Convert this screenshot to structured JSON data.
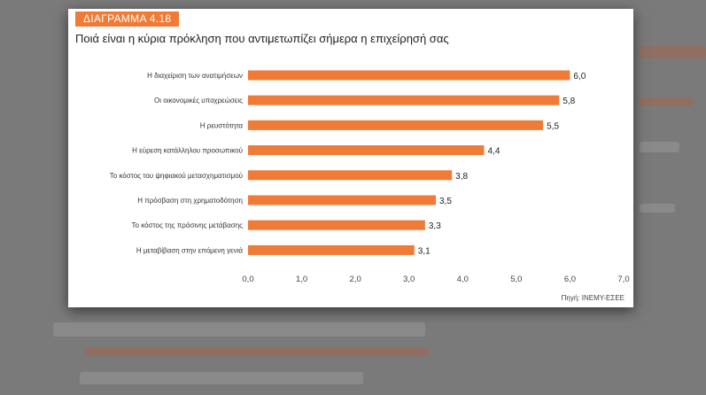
{
  "figure": {
    "tag": "ΔΙΑΓΡΑΜΜΑ 4.18",
    "title": "Ποιά είναι η κύρια πρόκληση που αντιμετωπίζει σήμερα η επιχείρησή σας",
    "source": "Πηγή: ΙΝΕΜΥ-ΕΣΕΕ"
  },
  "colors": {
    "bar": "#ef7b36",
    "tag": "#ef7b36",
    "background": "#7a7a7a"
  },
  "chart_data": {
    "type": "bar",
    "orientation": "horizontal",
    "categories": [
      "Η διαχείριση των ανατιμήσεων",
      "Οι οικονομικές υποχρεώσεις",
      "Η ρευστότητα",
      "Η εύρεση κατάλληλου προσωπικού",
      "Το κόστος του ψηφιακού μετασχηματισμού",
      "Η πρόσβαση στη χρηματοδότηση",
      "Το κόστος της πράσινης μετάβασης",
      "Η μεταβίβαση στην επόμενη γενιά"
    ],
    "values": [
      6.0,
      5.8,
      5.5,
      4.4,
      3.8,
      3.5,
      3.3,
      3.1
    ],
    "value_labels": [
      "6,0",
      "5,8",
      "5,5",
      "4,4",
      "3,8",
      "3,5",
      "3,3",
      "3,1"
    ],
    "xlim": [
      0,
      7
    ],
    "ticks": [
      "0,0",
      "1,0",
      "2,0",
      "3,0",
      "4,0",
      "5,0",
      "6,0",
      "7,0"
    ],
    "grid": false
  }
}
